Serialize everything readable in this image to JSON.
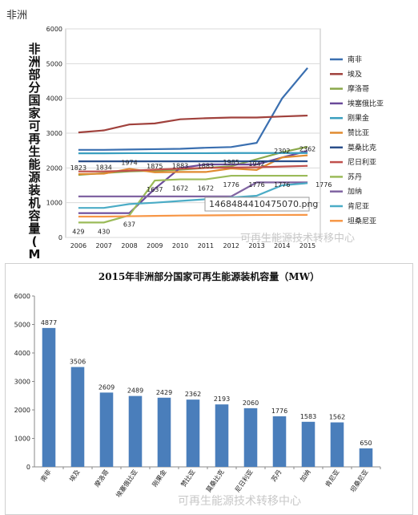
{
  "page": {
    "top_label": "非洲"
  },
  "watermark": "可再生能源技术转移中心",
  "chart_data": [
    {
      "type": "line",
      "title": "",
      "ylabel": "非洲部分国家可再生能源装机容量（MW）",
      "x": [
        "2006",
        "2007",
        "2008",
        "2009",
        "2010",
        "2011",
        "2012",
        "2013",
        "2014",
        "2015"
      ],
      "ylim": [
        0,
        6000
      ],
      "yticks": [
        0,
        1000,
        2000,
        3000,
        4000,
        5000,
        6000
      ],
      "grid": true,
      "legend_position": "right",
      "tooltip": "1468484410475070.png",
      "series": [
        {
          "name": "南非",
          "color": "#3a6fb0",
          "values": [
            2520,
            2520,
            2530,
            2540,
            2550,
            2580,
            2600,
            2720,
            4000,
            4877
          ]
        },
        {
          "name": "埃及",
          "color": "#a0413c",
          "values": [
            3020,
            3080,
            3250,
            3280,
            3400,
            3430,
            3450,
            3450,
            3480,
            3506
          ]
        },
        {
          "name": "摩洛哥",
          "color": "#8aa84a",
          "values": [
            1800,
            1850,
            1900,
            1920,
            1950,
            2000,
            2050,
            2250,
            2450,
            2609
          ]
        },
        {
          "name": "埃塞俄比亚",
          "color": "#6a4a9a",
          "values": [
            700,
            700,
            700,
            1400,
            2000,
            2100,
            2100,
            2100,
            2300,
            2489
          ]
        },
        {
          "name": "刚果金",
          "color": "#3a9fbf",
          "values": [
            2420,
            2420,
            2425,
            2425,
            2425,
            2425,
            2428,
            2428,
            2429,
            2429
          ]
        },
        {
          "name": "赞比亚",
          "color": "#e08a30",
          "values": [
            1823,
            1834,
            1974,
            1875,
            1883,
            1883,
            1985,
            1942,
            2302,
            2362
          ]
        },
        {
          "name": "莫桑比克",
          "color": "#2a4f8a",
          "values": [
            2190,
            2190,
            2190,
            2190,
            2190,
            2190,
            2190,
            2193,
            2193,
            2193
          ]
        },
        {
          "name": "尼日利亚",
          "color": "#c0504d",
          "values": [
            1900,
            1900,
            1920,
            1950,
            1980,
            2000,
            2010,
            2020,
            2040,
            2060
          ]
        },
        {
          "name": "苏丹",
          "color": "#9bbb59",
          "values": [
            429,
            430,
            637,
            1637,
            1672,
            1672,
            1776,
            1776,
            1776,
            1776
          ]
        },
        {
          "name": "加纳",
          "color": "#8064a2",
          "values": [
            1180,
            1180,
            1180,
            1180,
            1180,
            1180,
            1180,
            1583,
            1583,
            1583
          ]
        },
        {
          "name": "肯尼亚",
          "color": "#4bacc6",
          "values": [
            850,
            850,
            960,
            1000,
            1050,
            1100,
            1150,
            1200,
            1500,
            1562
          ]
        },
        {
          "name": "坦桑尼亚",
          "color": "#f79646",
          "values": [
            600,
            600,
            610,
            620,
            630,
            635,
            640,
            645,
            648,
            650
          ]
        }
      ],
      "point_labels": [
        {
          "series": "赞比亚",
          "values": [
            "1823",
            "1834",
            "1974",
            "1875",
            "1883",
            "1883",
            "1985",
            "1942",
            "2302",
            "2362"
          ]
        },
        {
          "series": "苏丹",
          "values": [
            "429",
            "430",
            "637",
            "1637",
            "1672",
            "1672",
            "1776",
            "1776",
            "1776",
            "1776"
          ]
        }
      ]
    },
    {
      "type": "bar",
      "title": "2015年非洲部分国家可再生能源装机容量（MW）",
      "categories": [
        "南非",
        "埃及",
        "摩洛哥",
        "埃塞俄比亚",
        "刚果金",
        "赞比亚",
        "莫桑比克",
        "尼日利亚",
        "苏丹",
        "加纳",
        "肯尼亚",
        "坦桑尼亚"
      ],
      "values": [
        4877,
        3506,
        2609,
        2489,
        2429,
        2362,
        2193,
        2060,
        1776,
        1583,
        1562,
        650
      ],
      "value_labels": [
        "4877",
        "3506",
        "2609",
        "2489",
        "2429",
        "2362",
        "2193",
        "2060",
        "1776",
        "1583",
        "1562",
        "650"
      ],
      "ylim": [
        0,
        6000
      ],
      "yticks": [
        0,
        1000,
        2000,
        3000,
        4000,
        5000,
        6000
      ],
      "grid": false,
      "bar_color": "#4a7ebb"
    }
  ]
}
